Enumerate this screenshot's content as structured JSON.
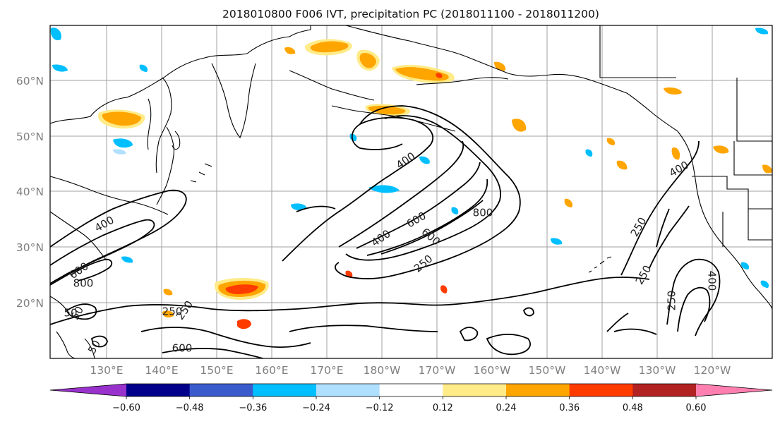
{
  "title": "2018010800 F006 IVT, precipitation PC (2018011100 - 2018011200)",
  "lat_labels": [
    "60°N",
    "50°N",
    "40°N",
    "30°N",
    "20°N"
  ],
  "lon_labels": [
    "130°E",
    "140°E",
    "150°E",
    "160°E",
    "170°E",
    "180°W",
    "170°W",
    "160°W",
    "150°W",
    "140°W",
    "130°W",
    "120°W"
  ],
  "colorbar": {
    "colors": [
      "#9932cc",
      "#00008b",
      "#3a5bcc",
      "#00bfff",
      "#b0e0ff",
      "#ffffff",
      "#ffeb87",
      "#ffa500",
      "#ff3c00",
      "#b22222",
      "#ff80b0"
    ],
    "labels": [
      "−0.60",
      "−0.48",
      "−0.36",
      "−0.24",
      "−0.12",
      "0.12",
      "0.24",
      "0.36",
      "0.48",
      "0.60"
    ]
  },
  "contour_labels": [
    {
      "text": "400",
      "rot": -30
    },
    {
      "text": "800",
      "rot": 0
    },
    {
      "text": "600",
      "rot": -35
    },
    {
      "text": "400",
      "rot": -35
    },
    {
      "text": "250",
      "rot": -40
    },
    {
      "text": "600",
      "rot": 40
    },
    {
      "text": "400",
      "rot": -35
    },
    {
      "text": "250",
      "rot": -55
    },
    {
      "text": "250",
      "rot": -60
    },
    {
      "text": "250",
      "rot": -60
    },
    {
      "text": "400",
      "rot": 90
    },
    {
      "text": "250",
      "rot": -90
    },
    {
      "text": "400",
      "rot": -30
    },
    {
      "text": "600",
      "rot": -30
    },
    {
      "text": "800",
      "rot": 0
    },
    {
      "text": "50",
      "rot": -60
    },
    {
      "text": "250",
      "rot": 0
    },
    {
      "text": "600",
      "rot": 0
    },
    {
      "text": "50",
      "rot": -60
    },
    {
      "text": "50",
      "rot": 0
    }
  ]
}
